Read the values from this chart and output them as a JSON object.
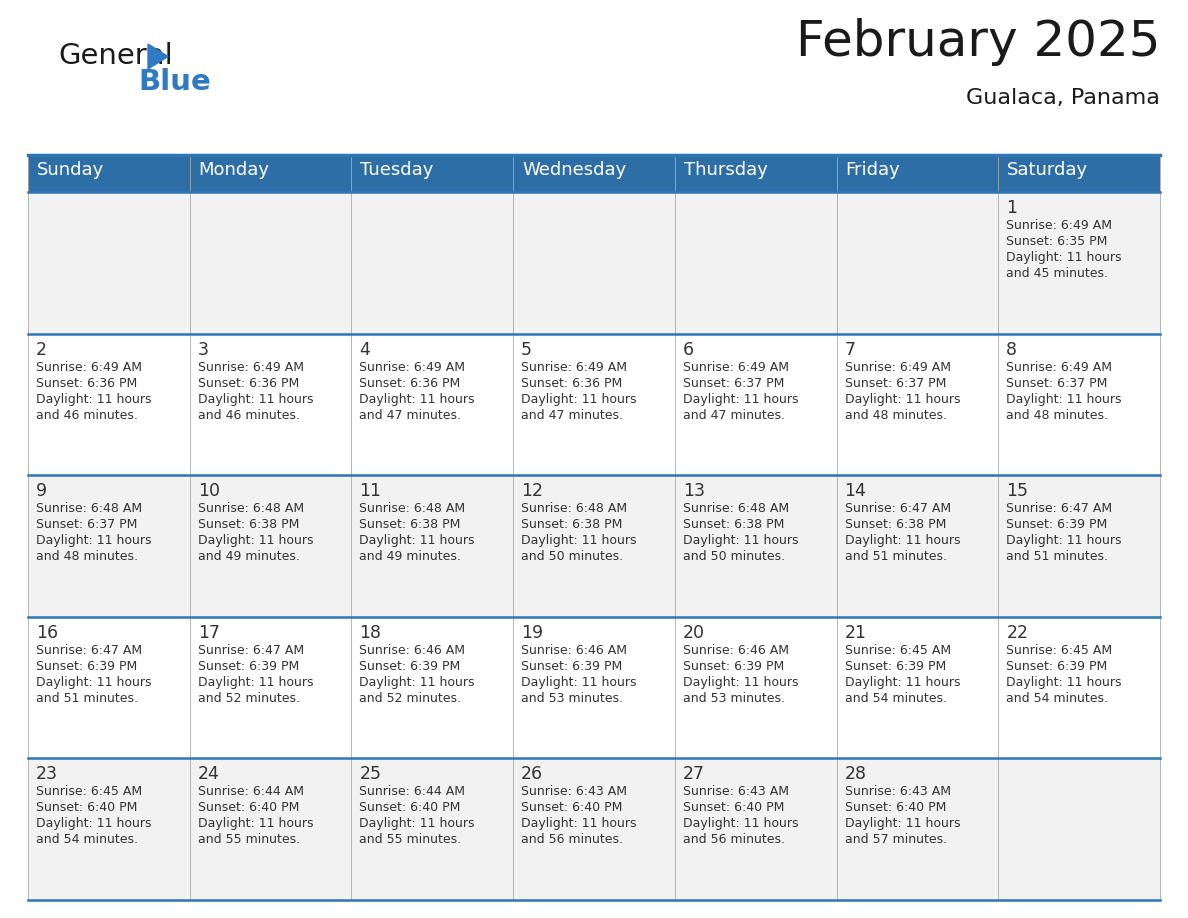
{
  "title": "February 2025",
  "subtitle": "Gualaca, Panama",
  "header_bg": "#2E6EA6",
  "header_text_color": "#FFFFFF",
  "cell_bg_even": "#F2F2F2",
  "cell_bg_odd": "#FFFFFF",
  "divider_color": "#2E75B6",
  "grid_color": "#AAAAAA",
  "text_color": "#333333",
  "days_of_week": [
    "Sunday",
    "Monday",
    "Tuesday",
    "Wednesday",
    "Thursday",
    "Friday",
    "Saturday"
  ],
  "calendar": [
    [
      {
        "day": null
      },
      {
        "day": null
      },
      {
        "day": null
      },
      {
        "day": null
      },
      {
        "day": null
      },
      {
        "day": null
      },
      {
        "day": 1,
        "sunrise": "6:49 AM",
        "sunset": "6:35 PM",
        "daylight": "11 hours and 45 minutes."
      }
    ],
    [
      {
        "day": 2,
        "sunrise": "6:49 AM",
        "sunset": "6:36 PM",
        "daylight": "11 hours and 46 minutes."
      },
      {
        "day": 3,
        "sunrise": "6:49 AM",
        "sunset": "6:36 PM",
        "daylight": "11 hours and 46 minutes."
      },
      {
        "day": 4,
        "sunrise": "6:49 AM",
        "sunset": "6:36 PM",
        "daylight": "11 hours and 47 minutes."
      },
      {
        "day": 5,
        "sunrise": "6:49 AM",
        "sunset": "6:36 PM",
        "daylight": "11 hours and 47 minutes."
      },
      {
        "day": 6,
        "sunrise": "6:49 AM",
        "sunset": "6:37 PM",
        "daylight": "11 hours and 47 minutes."
      },
      {
        "day": 7,
        "sunrise": "6:49 AM",
        "sunset": "6:37 PM",
        "daylight": "11 hours and 48 minutes."
      },
      {
        "day": 8,
        "sunrise": "6:49 AM",
        "sunset": "6:37 PM",
        "daylight": "11 hours and 48 minutes."
      }
    ],
    [
      {
        "day": 9,
        "sunrise": "6:48 AM",
        "sunset": "6:37 PM",
        "daylight": "11 hours and 48 minutes."
      },
      {
        "day": 10,
        "sunrise": "6:48 AM",
        "sunset": "6:38 PM",
        "daylight": "11 hours and 49 minutes."
      },
      {
        "day": 11,
        "sunrise": "6:48 AM",
        "sunset": "6:38 PM",
        "daylight": "11 hours and 49 minutes."
      },
      {
        "day": 12,
        "sunrise": "6:48 AM",
        "sunset": "6:38 PM",
        "daylight": "11 hours and 50 minutes."
      },
      {
        "day": 13,
        "sunrise": "6:48 AM",
        "sunset": "6:38 PM",
        "daylight": "11 hours and 50 minutes."
      },
      {
        "day": 14,
        "sunrise": "6:47 AM",
        "sunset": "6:38 PM",
        "daylight": "11 hours and 51 minutes."
      },
      {
        "day": 15,
        "sunrise": "6:47 AM",
        "sunset": "6:39 PM",
        "daylight": "11 hours and 51 minutes."
      }
    ],
    [
      {
        "day": 16,
        "sunrise": "6:47 AM",
        "sunset": "6:39 PM",
        "daylight": "11 hours and 51 minutes."
      },
      {
        "day": 17,
        "sunrise": "6:47 AM",
        "sunset": "6:39 PM",
        "daylight": "11 hours and 52 minutes."
      },
      {
        "day": 18,
        "sunrise": "6:46 AM",
        "sunset": "6:39 PM",
        "daylight": "11 hours and 52 minutes."
      },
      {
        "day": 19,
        "sunrise": "6:46 AM",
        "sunset": "6:39 PM",
        "daylight": "11 hours and 53 minutes."
      },
      {
        "day": 20,
        "sunrise": "6:46 AM",
        "sunset": "6:39 PM",
        "daylight": "11 hours and 53 minutes."
      },
      {
        "day": 21,
        "sunrise": "6:45 AM",
        "sunset": "6:39 PM",
        "daylight": "11 hours and 54 minutes."
      },
      {
        "day": 22,
        "sunrise": "6:45 AM",
        "sunset": "6:39 PM",
        "daylight": "11 hours and 54 minutes."
      }
    ],
    [
      {
        "day": 23,
        "sunrise": "6:45 AM",
        "sunset": "6:40 PM",
        "daylight": "11 hours and 54 minutes."
      },
      {
        "day": 24,
        "sunrise": "6:44 AM",
        "sunset": "6:40 PM",
        "daylight": "11 hours and 55 minutes."
      },
      {
        "day": 25,
        "sunrise": "6:44 AM",
        "sunset": "6:40 PM",
        "daylight": "11 hours and 55 minutes."
      },
      {
        "day": 26,
        "sunrise": "6:43 AM",
        "sunset": "6:40 PM",
        "daylight": "11 hours and 56 minutes."
      },
      {
        "day": 27,
        "sunrise": "6:43 AM",
        "sunset": "6:40 PM",
        "daylight": "11 hours and 56 minutes."
      },
      {
        "day": 28,
        "sunrise": "6:43 AM",
        "sunset": "6:40 PM",
        "daylight": "11 hours and 57 minutes."
      },
      {
        "day": null
      }
    ]
  ],
  "logo_color_general": "#1A1A1A",
  "logo_color_blue": "#2E7BC4",
  "logo_triangle_color": "#2E7BC4",
  "fig_width": 11.88,
  "fig_height": 9.18,
  "dpi": 100
}
